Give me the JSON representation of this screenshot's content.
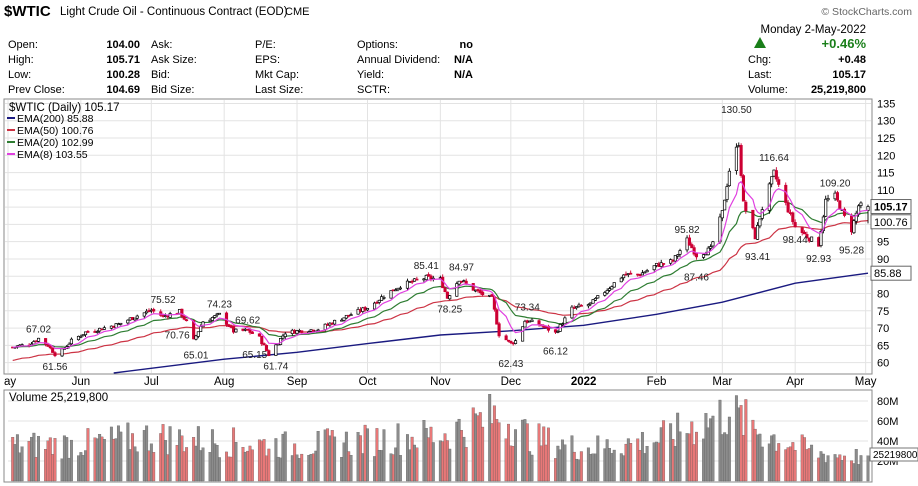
{
  "header": {
    "symbol": "$WTIC",
    "name": "Light Crude Oil - Continuous Contract (EOD)",
    "exchange": "CME",
    "watermark": "© StockCharts.com",
    "date": "Monday  2-May-2022",
    "change_pct": "+0.46%",
    "stats": [
      {
        "label": "Open:",
        "value": "104.00"
      },
      {
        "label": "High:",
        "value": "105.71"
      },
      {
        "label": "Low:",
        "value": "100.28"
      },
      {
        "label": "Prev Close:",
        "value": "104.69"
      },
      {
        "label": "Ask:",
        "value": ""
      },
      {
        "label": "Ask Size:",
        "value": ""
      },
      {
        "label": "Bid:",
        "value": ""
      },
      {
        "label": "Bid Size:",
        "value": ""
      },
      {
        "label": "P/E:",
        "value": ""
      },
      {
        "label": "EPS:",
        "value": ""
      },
      {
        "label": "Mkt Cap:",
        "value": ""
      },
      {
        "label": "Last Size:",
        "value": ""
      },
      {
        "label": "Options:",
        "value": "no"
      },
      {
        "label": "Annual Dividend:",
        "value": "N/A"
      },
      {
        "label": "Yield:",
        "value": "N/A"
      },
      {
        "label": "SCTR:",
        "value": ""
      },
      {
        "label": "Chg:",
        "value": "+0.48"
      },
      {
        "label": "Last:",
        "value": "105.17"
      },
      {
        "label": "Volume:",
        "value": "25,219,800"
      }
    ]
  },
  "colors": {
    "up": "#000000",
    "down": "#cc0033",
    "ema200": "#1a1a80",
    "ema50": "#cc3344",
    "ema20": "#2e7d32",
    "ema8": "#e040e0",
    "vol_up": "#8c8c8c",
    "vol_down": "#e87878",
    "grid": "#e3e3e3",
    "change_up": "#1a7f1a"
  },
  "chart_data": [
    {
      "type": "candlestick",
      "title": "$WTIC (Daily) 105.17",
      "x_tick_labels": [
        "ay",
        "Jun",
        "Jul",
        "Aug",
        "Sep",
        "Oct",
        "Nov",
        "Dec",
        "2022",
        "Feb",
        "Mar",
        "Apr",
        "May"
      ],
      "x_tick_dates": [
        "2021-05-01",
        "2021-06-01",
        "2021-07-01",
        "2021-08-01",
        "2021-09-01",
        "2021-10-01",
        "2021-11-01",
        "2021-12-01",
        "2022-01-01",
        "2022-02-01",
        "2022-03-01",
        "2022-04-01",
        "2022-05-01"
      ],
      "x_range": [
        "2021-05-01",
        "2022-05-02"
      ],
      "y_ticks": [
        60,
        65,
        70,
        75,
        80,
        85,
        90,
        95,
        100,
        105,
        110,
        115,
        120,
        125,
        130,
        135
      ],
      "y_range": [
        57,
        136
      ],
      "grid": true,
      "legend_position": "top-left",
      "legend": [
        {
          "key": "ema200",
          "label": "EMA(200) 85.88"
        },
        {
          "key": "ema50",
          "label": "EMA(50) 100.76"
        },
        {
          "key": "ema20",
          "label": "EMA(20) 102.99"
        },
        {
          "key": "ema8",
          "label": "EMA(8) 103.55"
        }
      ],
      "last_value_tags": [
        {
          "value": 105.17,
          "label": "105.17",
          "style": "bold"
        },
        {
          "value": 100.76,
          "label": "100.76",
          "style": "normal"
        },
        {
          "value": 85.88,
          "label": "85.88",
          "style": "normal"
        }
      ],
      "price_series": [
        {
          "date": "2021-05-03",
          "close": 64.5
        },
        {
          "date": "2021-05-10",
          "close": 65.4
        },
        {
          "date": "2021-05-14",
          "close": 67.0
        },
        {
          "date": "2021-05-18",
          "close": 65.0
        },
        {
          "date": "2021-05-21",
          "close": 62.5
        },
        {
          "date": "2021-05-24",
          "close": 63.5
        },
        {
          "date": "2021-05-28",
          "close": 66.3
        },
        {
          "date": "2021-06-03",
          "close": 68.8
        },
        {
          "date": "2021-06-10",
          "close": 69.9
        },
        {
          "date": "2021-06-17",
          "close": 71.1
        },
        {
          "date": "2021-06-24",
          "close": 73.3
        },
        {
          "date": "2021-07-01",
          "close": 75.2
        },
        {
          "date": "2021-07-06",
          "close": 73.4
        },
        {
          "date": "2021-07-13",
          "close": 74.8
        },
        {
          "date": "2021-07-16",
          "close": 71.8
        },
        {
          "date": "2021-07-19",
          "close": 66.4
        },
        {
          "date": "2021-07-23",
          "close": 71.9
        },
        {
          "date": "2021-07-30",
          "close": 73.9
        },
        {
          "date": "2021-08-05",
          "close": 69.1
        },
        {
          "date": "2021-08-11",
          "close": 69.3
        },
        {
          "date": "2021-08-16",
          "close": 67.2
        },
        {
          "date": "2021-08-20",
          "close": 62.3
        },
        {
          "date": "2021-08-27",
          "close": 68.7
        },
        {
          "date": "2021-09-03",
          "close": 69.3
        },
        {
          "date": "2021-09-10",
          "close": 69.7
        },
        {
          "date": "2021-09-17",
          "close": 71.9
        },
        {
          "date": "2021-09-24",
          "close": 74.0
        },
        {
          "date": "2021-10-01",
          "close": 75.9
        },
        {
          "date": "2021-10-08",
          "close": 79.4
        },
        {
          "date": "2021-10-15",
          "close": 82.3
        },
        {
          "date": "2021-10-22",
          "close": 83.8
        },
        {
          "date": "2021-10-26",
          "close": 84.6
        },
        {
          "date": "2021-11-01",
          "close": 84.1
        },
        {
          "date": "2021-11-04",
          "close": 78.8
        },
        {
          "date": "2021-11-09",
          "close": 84.2
        },
        {
          "date": "2021-11-16",
          "close": 80.8
        },
        {
          "date": "2021-11-23",
          "close": 78.5
        },
        {
          "date": "2021-11-26",
          "close": 68.2
        },
        {
          "date": "2021-12-01",
          "close": 65.6
        },
        {
          "date": "2021-12-03",
          "close": 66.3
        },
        {
          "date": "2021-12-07",
          "close": 72.1
        },
        {
          "date": "2021-12-10",
          "close": 71.7
        },
        {
          "date": "2021-12-14",
          "close": 70.7
        },
        {
          "date": "2021-12-20",
          "close": 68.6
        },
        {
          "date": "2021-12-27",
          "close": 75.6
        },
        {
          "date": "2022-01-04",
          "close": 77.0
        },
        {
          "date": "2022-01-11",
          "close": 81.2
        },
        {
          "date": "2022-01-18",
          "close": 85.4
        },
        {
          "date": "2022-01-25",
          "close": 85.6
        },
        {
          "date": "2022-02-01",
          "close": 88.2
        },
        {
          "date": "2022-02-08",
          "close": 89.4
        },
        {
          "date": "2022-02-14",
          "close": 95.5
        },
        {
          "date": "2022-02-18",
          "close": 91.1
        },
        {
          "date": "2022-02-24",
          "close": 92.8
        },
        {
          "date": "2022-03-01",
          "close": 103.4
        },
        {
          "date": "2022-03-04",
          "close": 115.7
        },
        {
          "date": "2022-03-08",
          "close": 123.7
        },
        {
          "date": "2022-03-10",
          "close": 106.0
        },
        {
          "date": "2022-03-15",
          "close": 96.4
        },
        {
          "date": "2022-03-18",
          "close": 104.7
        },
        {
          "date": "2022-03-23",
          "close": 114.9
        },
        {
          "date": "2022-03-28",
          "close": 105.9
        },
        {
          "date": "2022-04-01",
          "close": 99.3
        },
        {
          "date": "2022-04-07",
          "close": 96.0
        },
        {
          "date": "2022-04-11",
          "close": 94.3
        },
        {
          "date": "2022-04-14",
          "close": 106.9
        },
        {
          "date": "2022-04-18",
          "close": 108.2
        },
        {
          "date": "2022-04-22",
          "close": 102.1
        },
        {
          "date": "2022-04-25",
          "close": 98.5
        },
        {
          "date": "2022-04-28",
          "close": 105.4
        },
        {
          "date": "2022-05-02",
          "close": 105.17
        }
      ],
      "ema200_series": [
        {
          "date": "2021-06-15",
          "value": 57.0
        },
        {
          "date": "2021-08-01",
          "value": 61.0
        },
        {
          "date": "2021-09-01",
          "value": 63.0
        },
        {
          "date": "2021-10-01",
          "value": 65.5
        },
        {
          "date": "2021-11-01",
          "value": 68.0
        },
        {
          "date": "2021-12-01",
          "value": 69.2
        },
        {
          "date": "2022-01-01",
          "value": 70.8
        },
        {
          "date": "2022-02-01",
          "value": 74.0
        },
        {
          "date": "2022-03-01",
          "value": 77.5
        },
        {
          "date": "2022-04-01",
          "value": 83.0
        },
        {
          "date": "2022-05-02",
          "value": 85.88
        }
      ],
      "annotations": [
        {
          "date": "2021-05-14",
          "value": 67.02,
          "label": "67.02",
          "position": "above"
        },
        {
          "date": "2021-05-21",
          "value": 61.56,
          "label": "61.56",
          "position": "below"
        },
        {
          "date": "2021-07-06",
          "value": 75.52,
          "label": "75.52",
          "position": "above"
        },
        {
          "date": "2021-07-12",
          "value": 70.76,
          "label": "70.76",
          "position": "below"
        },
        {
          "date": "2021-07-20",
          "value": 65.01,
          "label": "65.01",
          "position": "below"
        },
        {
          "date": "2021-07-30",
          "value": 74.23,
          "label": "74.23",
          "position": "above"
        },
        {
          "date": "2021-08-11",
          "value": 69.62,
          "label": "69.62",
          "position": "above"
        },
        {
          "date": "2021-08-14",
          "value": 65.15,
          "label": "65.15",
          "position": "below"
        },
        {
          "date": "2021-08-23",
          "value": 61.74,
          "label": "61.74",
          "position": "below"
        },
        {
          "date": "2021-10-26",
          "value": 85.41,
          "label": "85.41",
          "position": "above"
        },
        {
          "date": "2021-11-05",
          "value": 78.25,
          "label": "78.25",
          "position": "below"
        },
        {
          "date": "2021-11-10",
          "value": 84.97,
          "label": "84.97",
          "position": "above"
        },
        {
          "date": "2021-12-01",
          "value": 62.43,
          "label": "62.43",
          "position": "below"
        },
        {
          "date": "2021-12-08",
          "value": 73.34,
          "label": "73.34",
          "position": "above"
        },
        {
          "date": "2021-12-20",
          "value": 66.12,
          "label": "66.12",
          "position": "below"
        },
        {
          "date": "2022-02-14",
          "value": 95.82,
          "label": "95.82",
          "position": "above"
        },
        {
          "date": "2022-02-18",
          "value": 87.46,
          "label": "87.46",
          "position": "below"
        },
        {
          "date": "2022-03-07",
          "value": 130.5,
          "label": "130.50",
          "position": "above"
        },
        {
          "date": "2022-03-16",
          "value": 93.41,
          "label": "93.41",
          "position": "below"
        },
        {
          "date": "2022-03-23",
          "value": 116.64,
          "label": "116.64",
          "position": "above"
        },
        {
          "date": "2022-04-01",
          "value": 98.44,
          "label": "98.44",
          "position": "below"
        },
        {
          "date": "2022-04-11",
          "value": 92.93,
          "label": "92.93",
          "position": "below"
        },
        {
          "date": "2022-04-18",
          "value": 109.2,
          "label": "109.20",
          "position": "above"
        },
        {
          "date": "2022-04-25",
          "value": 95.28,
          "label": "95.28",
          "position": "below"
        }
      ]
    },
    {
      "type": "bar",
      "title": "Volume 25,219,800",
      "y_ticks": [
        {
          "value": 20,
          "label": "20M"
        },
        {
          "value": 40,
          "label": "40M"
        },
        {
          "value": 60,
          "label": "60M"
        },
        {
          "value": 80,
          "label": "80M"
        }
      ],
      "y_range": [
        0,
        90
      ],
      "last_value_label": "25219800",
      "last_value": 25.2,
      "volume_profile": [
        {
          "date": "2021-05-01",
          "value": 38
        },
        {
          "date": "2021-06-01",
          "value": 40
        },
        {
          "date": "2021-07-01",
          "value": 48
        },
        {
          "date": "2021-08-01",
          "value": 42
        },
        {
          "date": "2021-09-01",
          "value": 38
        },
        {
          "date": "2021-10-01",
          "value": 44
        },
        {
          "date": "2021-11-01",
          "value": 50
        },
        {
          "date": "2021-11-26",
          "value": 72
        },
        {
          "date": "2021-12-10",
          "value": 46
        },
        {
          "date": "2022-01-01",
          "value": 35
        },
        {
          "date": "2022-02-01",
          "value": 44
        },
        {
          "date": "2022-03-04",
          "value": 74
        },
        {
          "date": "2022-03-20",
          "value": 50
        },
        {
          "date": "2022-04-10",
          "value": 30
        },
        {
          "date": "2022-05-02",
          "value": 25.2
        }
      ]
    }
  ]
}
